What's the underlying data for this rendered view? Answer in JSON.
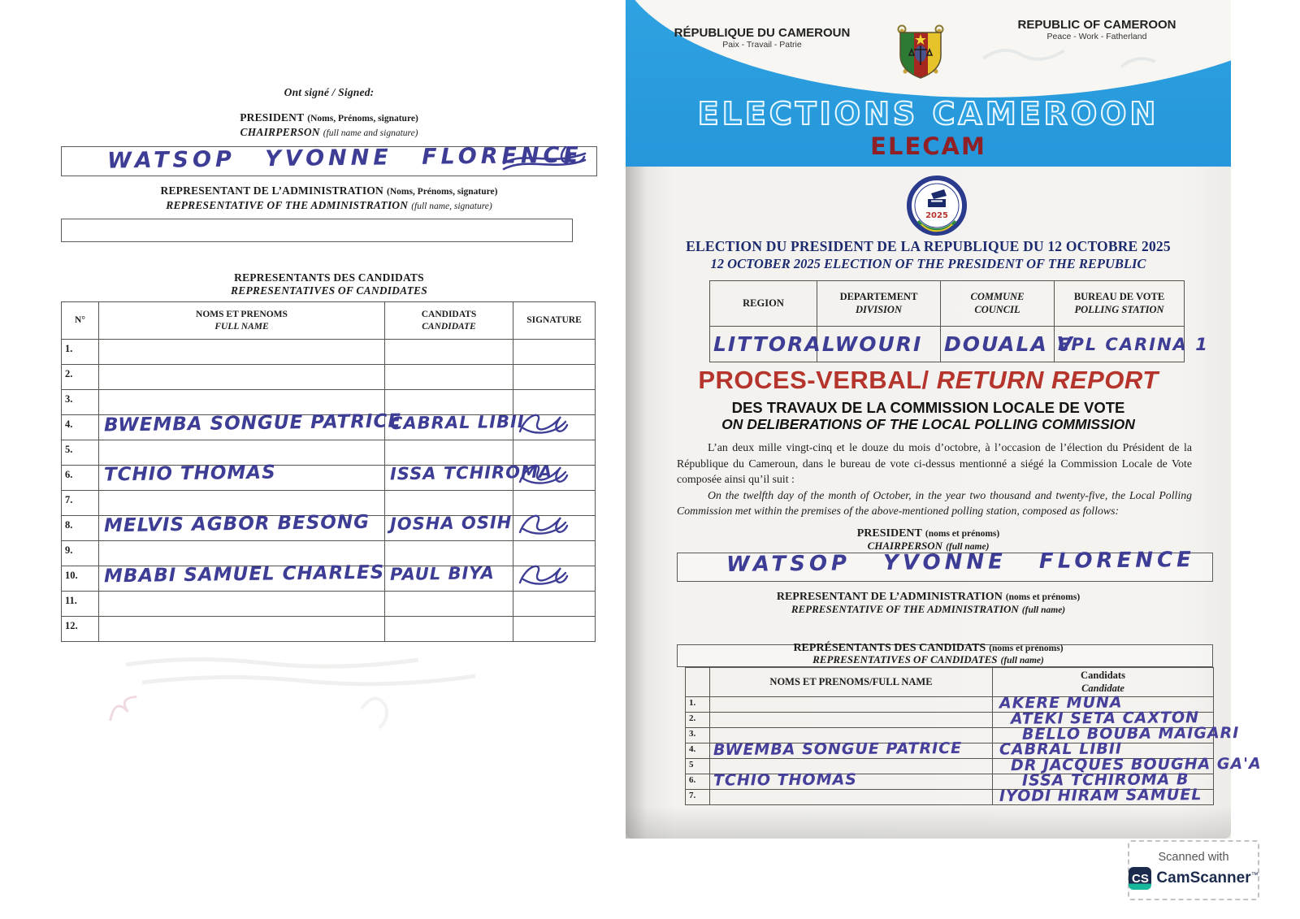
{
  "colors": {
    "banner_blue": "#2fa2e2",
    "elecam_red": "#8f2026",
    "navy_title": "#1c2a6e",
    "report_red": "#b5342c",
    "handwriting_ink": "#3e3d96"
  },
  "left_page": {
    "signed_heading": "Ont signé / Signed:",
    "president": {
      "label_fr": "PRESIDENT",
      "sub_fr": "(Noms, Prénoms, signature)",
      "label_en": "CHAIRPERSON",
      "sub_en": "(full name and signature)",
      "value": "WATSOP YVONNE FLORENCE"
    },
    "admin": {
      "label_fr": "REPRESENTANT DE L’ADMINISTRATION",
      "sub_fr": "(Noms, Prénoms, signature)",
      "label_en": "REPRESENTATIVE OF THE ADMINISTRATION",
      "sub_en": "(full name, signature)",
      "value": ""
    },
    "candidates_table": {
      "title_fr": "REPRESENTANTS DES CANDIDATS",
      "title_en": "REPRESENTATIVES OF CANDIDATES",
      "col_no": "N°",
      "col_name_fr": "NOMS ET PRENOMS",
      "col_name_en": "FULL NAME",
      "col_candidate_fr": "CANDIDATS",
      "col_candidate_en": "CANDIDATE",
      "col_signature": "SIGNATURE",
      "rows": [
        {
          "no": "1.",
          "name": "",
          "candidate": ""
        },
        {
          "no": "2.",
          "name": "",
          "candidate": ""
        },
        {
          "no": "3.",
          "name": "",
          "candidate": ""
        },
        {
          "no": "4.",
          "name": "BWEMBA SONGUE PATRICE",
          "candidate": "CABRAL LIBII"
        },
        {
          "no": "5.",
          "name": "",
          "candidate": ""
        },
        {
          "no": "6.",
          "name": "TCHIO THOMAS",
          "candidate": "ISSA TCHIROMA"
        },
        {
          "no": "7.",
          "name": "",
          "candidate": ""
        },
        {
          "no": "8.",
          "name": "MELVIS AGBOR BESONG",
          "candidate": "JOSHA OSIH"
        },
        {
          "no": "9.",
          "name": "",
          "candidate": ""
        },
        {
          "no": "10.",
          "name": "MBABI SAMUEL CHARLES",
          "candidate": "PAUL BIYA"
        },
        {
          "no": "11.",
          "name": "",
          "candidate": ""
        },
        {
          "no": "12.",
          "name": "",
          "candidate": ""
        }
      ]
    }
  },
  "right_page": {
    "header": {
      "republic_fr": "RÉPUBLIQUE DU CAMEROUN",
      "motto_fr": "Paix - Travail - Patrie",
      "republic_en": "REPUBLIC OF CAMEROON",
      "motto_en": "Peace - Work - Fatherland",
      "banner_title": "ELECTIONS CAMEROON",
      "banner_subtitle": "ELECAM",
      "logo_year": "2025"
    },
    "election_title_fr": "ELECTION DU PRESIDENT DE LA REPUBLIQUE DU 12 OCTOBRE 2025",
    "election_title_en": "12 OCTOBER 2025 ELECTION OF THE PRESIDENT OF THE REPUBLIC",
    "location_table": {
      "col1_fr": "REGION",
      "col1_en": "",
      "col2_fr": "DEPARTEMENT",
      "col2_en": "DIVISION",
      "col3_fr": "COMMUNE",
      "col3_en": "COUNCIL",
      "col4_fr": "BUREAU DE VOTE",
      "col4_en": "POLLING STATION",
      "values": [
        "LITTORAL",
        "WOURI",
        "DOUALA V",
        "EPL CARINA 1"
      ]
    },
    "report": {
      "title_fr": "PROCES-VERBAL/",
      "title_en": "RETURN REPORT",
      "sub_fr": "DES TRAVAUX DE LA COMMISSION LOCALE DE VOTE",
      "sub_en": "ON DELIBERATIONS OF THE LOCAL POLLING COMMISSION"
    },
    "preamble_fr": "L’an deux mille vingt-cinq et le douze du mois d’octobre, à l’occasion de l’élection du Président de la République du Cameroun, dans le bureau de vote ci-dessus mentionné a siégé la Commission Locale de Vote composée ainsi qu’il suit :",
    "preamble_en": "On the twelfth day of the month of October, in the year two thousand and twenty-five, the Local Polling Commission met within the premises of the above-mentioned polling station, composed as follows:",
    "president": {
      "label_fr": "PRESIDENT",
      "sub_fr": "(noms et prénoms)",
      "label_en": "CHAIRPERSON",
      "sub_en": "(full name)",
      "value": "WATSOP YVONNE FLORENCE"
    },
    "admin": {
      "label_fr": "REPRESENTANT DE L’ADMINISTRATION",
      "sub_fr": "(noms et prénoms)",
      "label_en": "REPRESENTATIVE OF THE ADMINISTRATION",
      "sub_en": "(full name)",
      "value": ""
    },
    "candidates_table": {
      "title_fr": "REPRÉSENTANTS DES CANDIDATS",
      "title_fr_sub": "(noms et prénoms)",
      "title_en": "REPRESENTATIVES OF CANDIDATES",
      "title_en_sub": "(full name)",
      "col_name": "NOMS ET PRENOMS/FULL NAME",
      "col_candidate_fr": "Candidats",
      "col_candidate_en": "Candidate",
      "rows": [
        {
          "no": "1.",
          "name": "",
          "candidate": "AKERE MUNA"
        },
        {
          "no": "2.",
          "name": "",
          "candidate": "ATEKI SETA CAXTON"
        },
        {
          "no": "3.",
          "name": "",
          "candidate": "BELLO BOUBA MAIGARI"
        },
        {
          "no": "4.",
          "name": "BWEMBA SONGUE PATRICE",
          "candidate": "CABRAL LIBII"
        },
        {
          "no": "5",
          "name": "",
          "candidate": "DR JACQUES BOUGHA GA'A"
        },
        {
          "no": "6.",
          "name": "TCHIO THOMAS",
          "candidate": "ISSA TCHIROMA B"
        },
        {
          "no": "7.",
          "name": "",
          "candidate": "IYODI HIRAM SAMUEL"
        }
      ]
    }
  },
  "camscanner": {
    "scanned_with": "Scanned with",
    "logo": "CS",
    "brand": "CamScanner",
    "tm": "™"
  }
}
